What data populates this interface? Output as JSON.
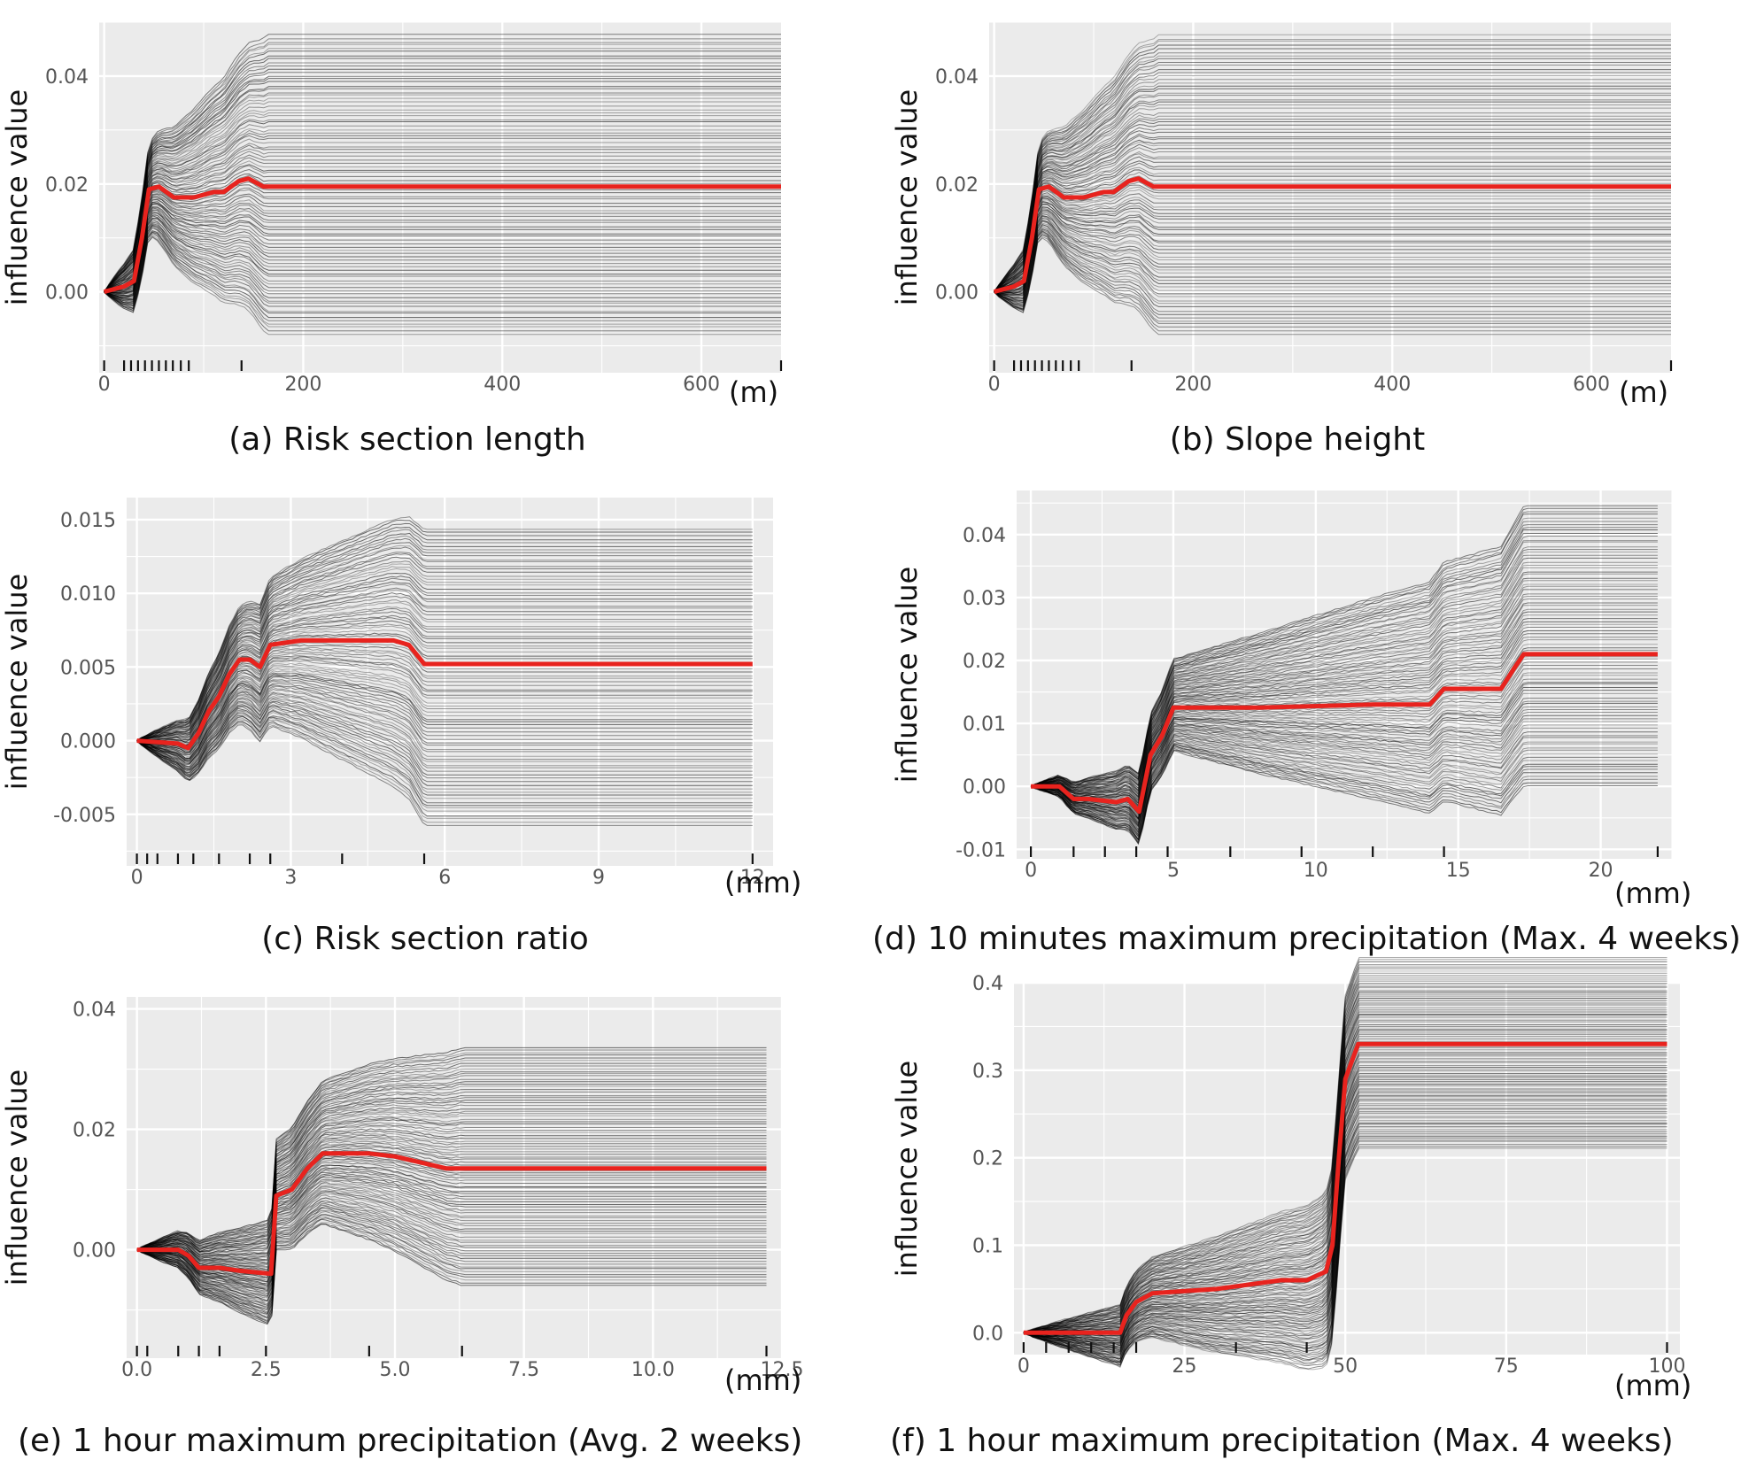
{
  "colors": {
    "panel_bg": "#ebebeb",
    "grid": "#ffffff",
    "ice": "#000000",
    "pdp": "#e8231e",
    "tick_text": "#555555"
  },
  "chart_data": [
    {
      "type": "line",
      "panel": "a",
      "caption": "(a) Risk section length",
      "ylabel": "influence value",
      "unit": "(m)",
      "xlim": [
        -5,
        680
      ],
      "ylim": [
        -0.015,
        0.05
      ],
      "xticks": [
        0,
        200,
        400,
        600
      ],
      "yticks": [
        0.0,
        0.02,
        0.04
      ],
      "xtick_labels": [
        "0",
        "200",
        "400",
        "600"
      ],
      "ytick_labels": [
        "0.00",
        "0.02",
        "0.04"
      ],
      "rug": [
        0,
        20,
        27,
        34,
        41,
        48,
        55,
        62,
        69,
        77,
        85,
        138,
        680
      ],
      "series": [
        {
          "values": {
            "x": [
              0,
              20,
              30,
              38,
              45,
              55,
              70,
              90,
              110,
              120,
              135,
              145,
              160,
              680
            ],
            "y": [
              0,
              0.001,
              0.002,
              0.01,
              0.019,
              0.0195,
              0.0175,
              0.0175,
              0.0185,
              0.0185,
              0.0205,
              0.021,
              0.0195,
              0.0195
            ]
          }
        }
      ],
      "ice_range": [
        -0.008,
        0.048
      ],
      "ice_flat_from": 165
    },
    {
      "type": "line",
      "panel": "b",
      "caption": "(b) Slope height",
      "ylabel": "influence value",
      "unit": "(m)",
      "xlim": [
        -5,
        680
      ],
      "ylim": [
        -0.015,
        0.05
      ],
      "xticks": [
        0,
        200,
        400,
        600
      ],
      "yticks": [
        0.0,
        0.02,
        0.04
      ],
      "xtick_labels": [
        "0",
        "200",
        "400",
        "600"
      ],
      "ytick_labels": [
        "0.00",
        "0.02",
        "0.04"
      ],
      "rug": [
        0,
        20,
        27,
        34,
        41,
        48,
        55,
        62,
        69,
        77,
        85,
        138,
        680
      ],
      "series": [
        {
          "values": {
            "x": [
              0,
              20,
              30,
              38,
              45,
              55,
              70,
              90,
              110,
              120,
              135,
              145,
              160,
              680
            ],
            "y": [
              0,
              0.001,
              0.002,
              0.01,
              0.019,
              0.0195,
              0.0175,
              0.0175,
              0.0185,
              0.0185,
              0.0205,
              0.021,
              0.0195,
              0.0195
            ]
          }
        }
      ],
      "ice_range": [
        -0.008,
        0.048
      ],
      "ice_flat_from": 165
    },
    {
      "type": "line",
      "panel": "c",
      "caption": "(c) Risk section ratio",
      "ylabel": "influence value",
      "unit": "(mm)",
      "xlim": [
        -0.2,
        12.4
      ],
      "ylim": [
        -0.0085,
        0.0165
      ],
      "xticks": [
        0,
        3,
        6,
        9,
        12
      ],
      "yticks": [
        -0.005,
        0.0,
        0.005,
        0.01,
        0.015
      ],
      "xtick_labels": [
        "0",
        "3",
        "6",
        "9",
        "12"
      ],
      "ytick_labels": [
        "-0.005",
        "0.000",
        "0.005",
        "0.010",
        "0.015"
      ],
      "rug": [
        0,
        0.2,
        0.4,
        0.8,
        1.1,
        1.6,
        2.2,
        2.6,
        4.0,
        5.6,
        12
      ],
      "series": [
        {
          "values": {
            "x": [
              0,
              0.8,
              1.0,
              1.2,
              1.4,
              1.6,
              1.8,
              2.0,
              2.2,
              2.4,
              2.6,
              3.2,
              4.0,
              5.0,
              5.3,
              5.6,
              12
            ],
            "y": [
              0,
              -0.0002,
              -0.0005,
              0.0005,
              0.002,
              0.003,
              0.0045,
              0.0055,
              0.0055,
              0.005,
              0.0065,
              0.0068,
              0.0068,
              0.0068,
              0.0065,
              0.0052,
              0.0052
            ]
          }
        }
      ],
      "ice_range": [
        -0.0058,
        0.0145
      ],
      "ice_flat_from": 5.6
    },
    {
      "type": "line",
      "panel": "d",
      "caption": "(d) 10 minutes maximum precipitation (Max. 4 weeks)",
      "ylabel": "influence value",
      "unit": "(mm)",
      "xlim": [
        -0.5,
        22.5
      ],
      "ylim": [
        -0.0115,
        0.047
      ],
      "xticks": [
        0,
        5,
        10,
        15,
        20
      ],
      "yticks": [
        -0.01,
        0.0,
        0.01,
        0.02,
        0.03,
        0.04
      ],
      "xtick_labels": [
        "0",
        "5",
        "10",
        "15",
        "20"
      ],
      "ytick_labels": [
        "-0.01",
        "0.00",
        "0.01",
        "0.02",
        "0.03",
        "0.04"
      ],
      "rug": [
        0,
        1.5,
        2.6,
        3.7,
        4.8,
        7.0,
        9.5,
        12.0,
        14.5,
        22
      ],
      "series": [
        {
          "values": {
            "x": [
              0,
              1.0,
              1.5,
              2.0,
              3.0,
              3.4,
              3.8,
              4.2,
              4.6,
              5.0,
              8,
              12,
              14.0,
              14.5,
              16.5,
              17.0,
              17.3,
              22
            ],
            "y": [
              0,
              0,
              -0.002,
              -0.002,
              -0.0025,
              -0.002,
              -0.004,
              0.005,
              0.008,
              0.0125,
              0.0125,
              0.013,
              0.013,
              0.0155,
              0.0155,
              0.019,
              0.021,
              0.021
            ]
          }
        }
      ],
      "ice_range": [
        0.0,
        0.045
      ],
      "ice_flat_from": 17.3
    },
    {
      "type": "line",
      "panel": "e",
      "caption": "(e) 1 hour maximum precipitation (Avg. 2 weeks)",
      "ylabel": "influence value",
      "unit": "(mm)",
      "xlim": [
        -0.2,
        12.5
      ],
      "ylim": [
        -0.018,
        0.042
      ],
      "xticks": [
        0.0,
        2.5,
        5.0,
        7.5,
        10.0,
        12.5
      ],
      "yticks": [
        0.0,
        0.02,
        0.04
      ],
      "xtick_labels": [
        "0.0",
        "2.5",
        "5.0",
        "7.5",
        "10.0",
        "12.5"
      ],
      "ytick_labels": [
        "0.00",
        "0.02",
        "0.04"
      ],
      "rug": [
        0,
        0.2,
        0.8,
        1.2,
        1.6,
        2.5,
        4.5,
        6.3,
        12.2
      ],
      "series": [
        {
          "values": {
            "x": [
              0,
              0.8,
              1.0,
              1.2,
              1.6,
              2.0,
              2.6,
              2.7,
              3.0,
              3.3,
              3.6,
              4.5,
              5.0,
              6.0,
              12.2
            ],
            "y": [
              0,
              0,
              -0.001,
              -0.003,
              -0.003,
              -0.0035,
              -0.004,
              0.009,
              0.01,
              0.0135,
              0.016,
              0.016,
              0.0155,
              0.0135,
              0.0135
            ]
          }
        }
      ],
      "ice_range": [
        -0.006,
        0.034
      ],
      "ice_flat_from": 6.3
    },
    {
      "type": "line",
      "panel": "f",
      "caption": "(f) 1 hour maximum precipitation (Max. 4 weeks)",
      "ylabel": "influence value",
      "unit": "(mm)",
      "xlim": [
        -1.5,
        102
      ],
      "ylim": [
        -0.025,
        0.4
      ],
      "xticks": [
        0,
        25,
        50,
        75,
        100
      ],
      "yticks": [
        0.0,
        0.1,
        0.2,
        0.3,
        0.4
      ],
      "xtick_labels": [
        "0",
        "25",
        "50",
        "75",
        "100"
      ],
      "ytick_labels": [
        "0.0",
        "0.1",
        "0.2",
        "0.3",
        "0.4"
      ],
      "rug": [
        0,
        3.5,
        7,
        10.5,
        14,
        17.5,
        33,
        44,
        100
      ],
      "series": [
        {
          "values": {
            "x": [
              0,
              15,
              16,
              17.5,
              20,
              30,
              40,
              44,
              47,
              48,
              49,
              50,
              52,
              100
            ],
            "y": [
              0,
              0,
              0.02,
              0.035,
              0.045,
              0.05,
              0.06,
              0.06,
              0.07,
              0.1,
              0.2,
              0.29,
              0.33,
              0.33
            ]
          }
        }
      ],
      "ice_range": [
        0.21,
        0.43
      ],
      "ice_flat_from": 52
    }
  ]
}
